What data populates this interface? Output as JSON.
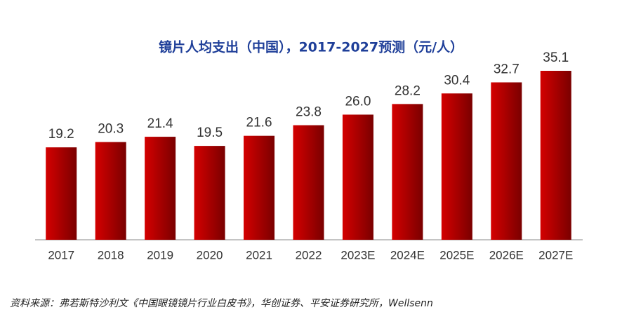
{
  "chart_data": {
    "type": "bar",
    "title": "镜片人均支出（中国），2017-2027预测（元/人）",
    "categories": [
      "2017",
      "2018",
      "2019",
      "2020",
      "2021",
      "2022",
      "2023E",
      "2024E",
      "2025E",
      "2026E",
      "2027E"
    ],
    "values": [
      19.2,
      20.3,
      21.4,
      19.5,
      21.6,
      23.8,
      26.0,
      28.2,
      30.4,
      32.7,
      35.1
    ],
    "value_labels": [
      "19.2",
      "20.3",
      "21.4",
      "19.5",
      "21.6",
      "23.8",
      "26.0",
      "28.2",
      "30.4",
      "32.7",
      "35.1"
    ],
    "color": "#c00000",
    "source": "资料来源：弗若斯特沙利文《中国眼镜镜片行业白皮书》，华创证券、平安证券研究所，Wellsenn"
  }
}
